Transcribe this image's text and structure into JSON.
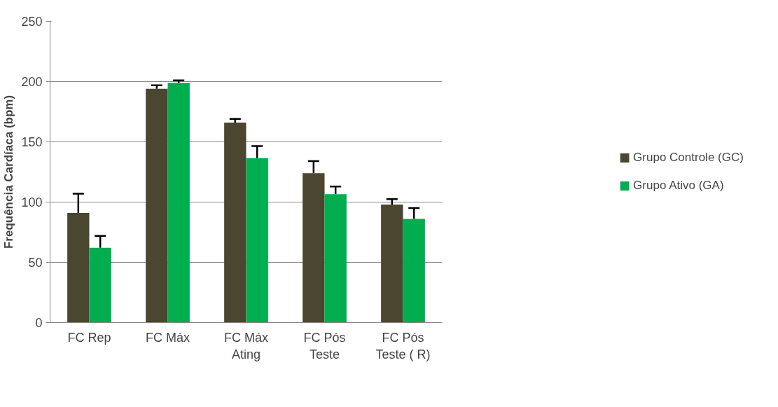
{
  "chart_data": {
    "type": "bar",
    "ylabel": "Frequência Cardíaca (bpm)",
    "categories": [
      "FC Rep",
      "FC Máx",
      "FC Máx\nAting",
      "FC Pós\nTeste",
      "FC Pós\nTeste ( R)"
    ],
    "series": [
      {
        "name": "Grupo Controle (GC)",
        "color": "#4b4630",
        "values": [
          91,
          194,
          166,
          124,
          98
        ],
        "errors": [
          [
            91,
            107
          ],
          [
            194,
            197
          ],
          [
            166,
            169
          ],
          [
            124,
            134
          ],
          [
            98,
            102.5
          ]
        ]
      },
      {
        "name": "Grupo Ativo (GA)",
        "color": "#00ad4f",
        "values": [
          62,
          199,
          136.5,
          106.5,
          86
        ],
        "errors": [
          [
            62,
            72
          ],
          [
            199,
            201
          ],
          [
            136.5,
            146.5
          ],
          [
            106.5,
            113
          ],
          [
            86,
            95
          ]
        ]
      }
    ],
    "ylim": [
      0,
      250
    ],
    "yticks": [
      0,
      50,
      100,
      150,
      200,
      250
    ],
    "grid": "y",
    "legend": "right"
  }
}
